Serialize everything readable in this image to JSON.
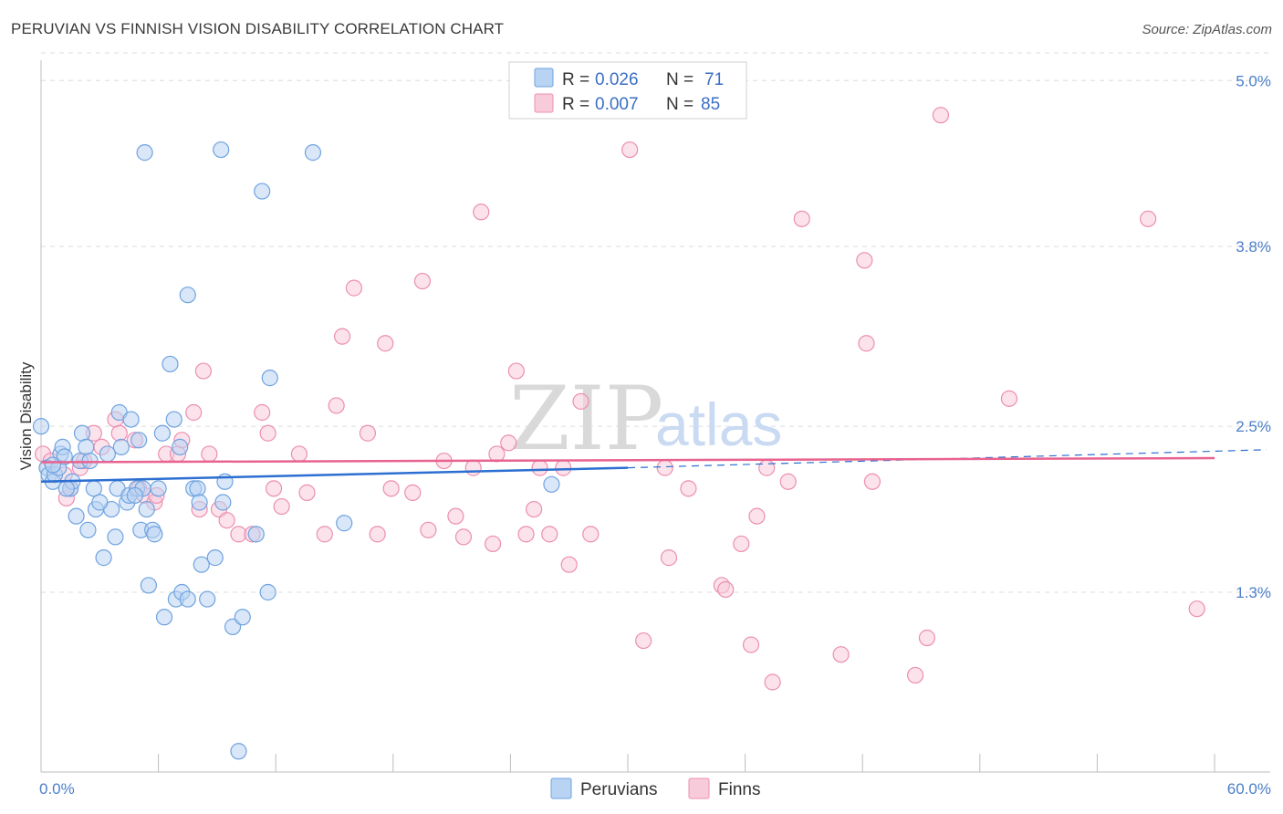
{
  "header": {
    "title": "PERUVIAN VS FINNISH VISION DISABILITY CORRELATION CHART",
    "source": "Source: ZipAtlas.com"
  },
  "watermark": {
    "zip": "ZIP",
    "atlas": "atlas"
  },
  "colors": {
    "peruvians": "#6fa3e0",
    "peruvians_fill": "#b9d3f2",
    "peruvians_line": "#2c6fd1",
    "finns": "#ec8fb0",
    "finns_fill": "#f8cbdb",
    "finns_line": "#e8638f",
    "tick": "#4a7fc9",
    "grid": "#dcdcdc"
  },
  "legend": {
    "rows": [
      {
        "r_label": "R =",
        "r_value": "0.026",
        "n_label": "N =",
        "n_value": "71"
      },
      {
        "r_label": "R =",
        "r_value": "0.007",
        "n_label": "N =",
        "n_value": "85"
      }
    ]
  },
  "bottom_legend": {
    "items": [
      "Peruvians",
      "Finns"
    ]
  },
  "chart_data": {
    "type": "scatter",
    "title": "PERUVIAN VS FINNISH VISION DISABILITY CORRELATION CHART",
    "xlabel": "",
    "ylabel": "Vision Disability",
    "xlim": [
      0,
      60
    ],
    "ylim": [
      0,
      5.2
    ],
    "x_tick_labels": [
      "0.0%",
      "60.0%"
    ],
    "y_ticks": [
      1.3,
      2.5,
      3.8,
      5.0
    ],
    "y_tick_labels": [
      "1.3%",
      "2.5%",
      "3.8%",
      "5.0%"
    ],
    "grid": true,
    "series": [
      {
        "name": "Peruvians",
        "r": 0.026,
        "n": 71,
        "trend": {
          "x": [
            0,
            30
          ],
          "y": [
            2.1,
            2.2
          ]
        },
        "trend_extension": {
          "x": [
            30,
            60
          ],
          "y": [
            2.2,
            2.32
          ]
        },
        "points": [
          [
            0.0,
            2.5
          ],
          [
            0.3,
            2.2
          ],
          [
            0.4,
            2.15
          ],
          [
            0.6,
            2.1
          ],
          [
            0.7,
            2.15
          ],
          [
            0.9,
            2.2
          ],
          [
            1.0,
            2.3
          ],
          [
            1.1,
            2.35
          ],
          [
            1.2,
            2.28
          ],
          [
            1.5,
            2.05
          ],
          [
            1.6,
            2.1
          ],
          [
            1.8,
            1.85
          ],
          [
            2.0,
            2.25
          ],
          [
            2.1,
            2.45
          ],
          [
            2.3,
            2.35
          ],
          [
            2.4,
            1.75
          ],
          [
            2.7,
            2.05
          ],
          [
            2.8,
            1.9
          ],
          [
            3.2,
            1.55
          ],
          [
            3.4,
            2.3
          ],
          [
            3.6,
            1.9
          ],
          [
            3.8,
            1.7
          ],
          [
            3.9,
            2.05
          ],
          [
            4.0,
            2.6
          ],
          [
            4.1,
            2.35
          ],
          [
            4.4,
            1.95
          ],
          [
            4.5,
            2.0
          ],
          [
            4.6,
            2.55
          ],
          [
            4.9,
            2.05
          ],
          [
            5.0,
            2.4
          ],
          [
            5.1,
            1.75
          ],
          [
            5.2,
            2.05
          ],
          [
            5.4,
            1.9
          ],
          [
            5.5,
            1.35
          ],
          [
            5.7,
            1.75
          ],
          [
            5.8,
            1.72
          ],
          [
            6.0,
            2.05
          ],
          [
            6.2,
            2.45
          ],
          [
            6.3,
            1.12
          ],
          [
            6.6,
            2.95
          ],
          [
            6.8,
            2.55
          ],
          [
            6.9,
            1.25
          ],
          [
            7.1,
            2.35
          ],
          [
            7.2,
            1.3
          ],
          [
            7.5,
            1.25
          ],
          [
            7.8,
            2.05
          ],
          [
            8.0,
            2.05
          ],
          [
            8.1,
            1.95
          ],
          [
            8.2,
            1.5
          ],
          [
            8.5,
            1.25
          ],
          [
            9.2,
            4.5
          ],
          [
            9.3,
            1.95
          ],
          [
            9.4,
            2.1
          ],
          [
            9.8,
            1.05
          ],
          [
            10.1,
            0.15
          ],
          [
            10.3,
            1.12
          ],
          [
            11.0,
            1.72
          ],
          [
            11.6,
            1.3
          ],
          [
            11.7,
            2.85
          ],
          [
            11.3,
            4.2
          ],
          [
            13.9,
            4.48
          ],
          [
            15.5,
            1.8
          ],
          [
            26.1,
            2.08
          ],
          [
            7.5,
            3.45
          ],
          [
            5.3,
            4.48
          ],
          [
            2.5,
            2.25
          ],
          [
            1.3,
            2.05
          ],
          [
            0.6,
            2.22
          ],
          [
            4.8,
            2.0
          ],
          [
            3.0,
            1.95
          ],
          [
            8.9,
            1.55
          ]
        ]
      },
      {
        "name": "Finns",
        "r": 0.007,
        "n": 85,
        "trend": {
          "x": [
            0,
            60
          ],
          "y": [
            2.24,
            2.27
          ]
        },
        "points": [
          [
            0.1,
            2.3
          ],
          [
            0.5,
            2.25
          ],
          [
            1.2,
            2.15
          ],
          [
            1.3,
            1.98
          ],
          [
            1.5,
            2.05
          ],
          [
            2.0,
            2.2
          ],
          [
            2.2,
            2.25
          ],
          [
            2.7,
            2.45
          ],
          [
            3.1,
            2.35
          ],
          [
            3.8,
            2.55
          ],
          [
            4.0,
            2.45
          ],
          [
            4.8,
            2.4
          ],
          [
            5.0,
            2.05
          ],
          [
            5.3,
            2.0
          ],
          [
            5.8,
            1.95
          ],
          [
            5.9,
            2.0
          ],
          [
            6.4,
            2.3
          ],
          [
            7.0,
            2.3
          ],
          [
            7.2,
            2.4
          ],
          [
            7.8,
            2.6
          ],
          [
            8.1,
            1.9
          ],
          [
            8.3,
            2.9
          ],
          [
            8.6,
            2.3
          ],
          [
            9.1,
            1.9
          ],
          [
            9.5,
            1.82
          ],
          [
            10.1,
            1.72
          ],
          [
            10.8,
            1.72
          ],
          [
            11.3,
            2.6
          ],
          [
            11.6,
            2.45
          ],
          [
            11.9,
            2.05
          ],
          [
            12.3,
            1.92
          ],
          [
            13.2,
            2.3
          ],
          [
            13.6,
            2.02
          ],
          [
            14.5,
            1.72
          ],
          [
            15.1,
            2.65
          ],
          [
            15.4,
            3.15
          ],
          [
            16.0,
            3.5
          ],
          [
            16.7,
            2.45
          ],
          [
            17.2,
            1.72
          ],
          [
            17.6,
            3.1
          ],
          [
            17.9,
            2.05
          ],
          [
            19.0,
            2.02
          ],
          [
            19.5,
            3.55
          ],
          [
            19.8,
            1.75
          ],
          [
            20.6,
            2.25
          ],
          [
            21.2,
            1.85
          ],
          [
            21.6,
            1.7
          ],
          [
            22.1,
            2.2
          ],
          [
            22.5,
            4.05
          ],
          [
            23.1,
            1.65
          ],
          [
            23.3,
            2.3
          ],
          [
            23.9,
            2.38
          ],
          [
            24.3,
            2.9
          ],
          [
            24.8,
            1.72
          ],
          [
            25.2,
            1.9
          ],
          [
            25.5,
            2.2
          ],
          [
            26.0,
            1.72
          ],
          [
            26.7,
            2.2
          ],
          [
            27.0,
            1.5
          ],
          [
            27.6,
            2.68
          ],
          [
            28.1,
            1.72
          ],
          [
            30.1,
            4.5
          ],
          [
            30.8,
            0.95
          ],
          [
            31.9,
            2.2
          ],
          [
            32.1,
            1.55
          ],
          [
            33.1,
            2.05
          ],
          [
            34.8,
            1.35
          ],
          [
            35.0,
            1.32
          ],
          [
            35.8,
            1.65
          ],
          [
            36.3,
            0.92
          ],
          [
            36.6,
            1.85
          ],
          [
            37.1,
            2.2
          ],
          [
            37.4,
            0.65
          ],
          [
            38.2,
            2.1
          ],
          [
            38.9,
            4.0
          ],
          [
            40.9,
            0.85
          ],
          [
            42.1,
            3.7
          ],
          [
            42.2,
            3.1
          ],
          [
            42.5,
            2.1
          ],
          [
            44.7,
            0.7
          ],
          [
            45.3,
            0.97
          ],
          [
            46.0,
            4.75
          ],
          [
            49.5,
            2.7
          ],
          [
            56.6,
            4.0
          ],
          [
            59.1,
            1.18
          ]
        ]
      }
    ]
  }
}
